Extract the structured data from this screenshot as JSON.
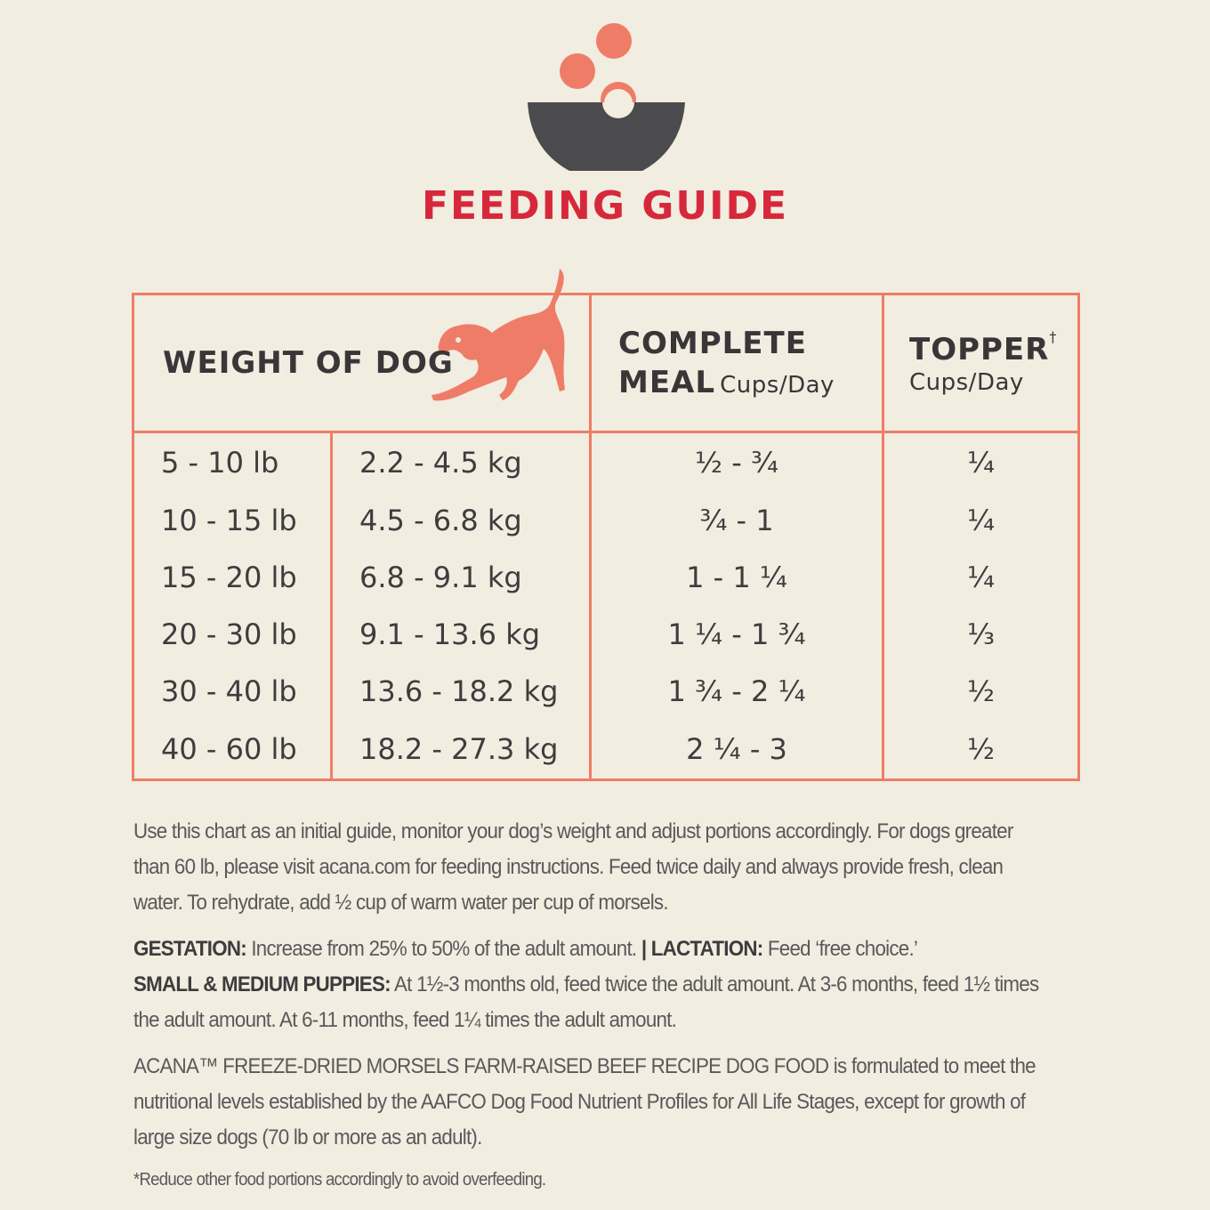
{
  "header": {
    "title": "FEEDING GUIDE"
  },
  "table": {
    "col_weight": "WEIGHT OF DOG",
    "col_meal_bold_1": "COMPLETE",
    "col_meal_bold_2": "MEAL",
    "col_meal_unit": "Cups/Day",
    "col_topper": "TOPPER",
    "col_topper_mark": "†",
    "col_topper_unit": "Cups/Day",
    "rows": [
      {
        "lb": "5 - 10 lb",
        "kg": "2.2 - 4.5 kg",
        "meal": "½ - ¾",
        "topper": "¼"
      },
      {
        "lb": "10 - 15 lb",
        "kg": "4.5 - 6.8 kg",
        "meal": "¾ -  1",
        "topper": "¼"
      },
      {
        "lb": "15 - 20 lb",
        "kg": "6.8 - 9.1 kg",
        "meal": "1 - 1 ¼",
        "topper": "¼"
      },
      {
        "lb": "20 - 30 lb",
        "kg": "9.1 - 13.6 kg",
        "meal": "1 ¼ - 1 ¾",
        "topper": "⅓"
      },
      {
        "lb": "30 - 40 lb",
        "kg": "13.6 - 18.2 kg",
        "meal": "1 ¾ - 2 ¼",
        "topper": "½"
      },
      {
        "lb": "40 - 60 lb",
        "kg": "18.2 - 27.3 kg",
        "meal": "2 ¼ - 3",
        "topper": "½"
      }
    ]
  },
  "notes": {
    "intro": "Use this chart as an initial guide, monitor your dog’s weight and adjust portions accordingly. For dogs greater than 60 lb, please visit acana.com for feeding instructions. Feed twice daily and always provide fresh, clean water. To rehydrate, add ½ cup of warm water per cup of morsels.",
    "gestation_label": "GESTATION:",
    "gestation_text": " Increase from 25% to 50% of the adult amount. ",
    "separator": "|",
    "lactation_label": " LACTATION:",
    "lactation_text": " Feed ‘free choice.’",
    "puppies_label": "SMALL & MEDIUM PUPPIES:",
    "puppies_text": " At 1½-3 months old, feed twice the adult amount. At 3-6 months, feed 1½ times the adult amount. At 6-11 months, feed 1¼ times the adult amount.",
    "aafco": "ACANA™ FREEZE-DRIED MORSELS FARM-RAISED BEEF RECIPE DOG FOOD is formulated to meet the nutritional levels established by the AAFCO Dog Food Nutrient Profiles for All Life Stages, except for growth of large size dogs (70 lb or more as an adult).",
    "footnote": "*Reduce other food portions accordingly to avoid overfeeding."
  },
  "colors": {
    "accent_red": "#d7283b",
    "coral": "#ef7c67",
    "bowl": "#4b4a4c",
    "background": "#f1ede0"
  },
  "icons": {
    "logo": "bowl-with-kibble-icon",
    "dog": "playing-dog-icon"
  }
}
